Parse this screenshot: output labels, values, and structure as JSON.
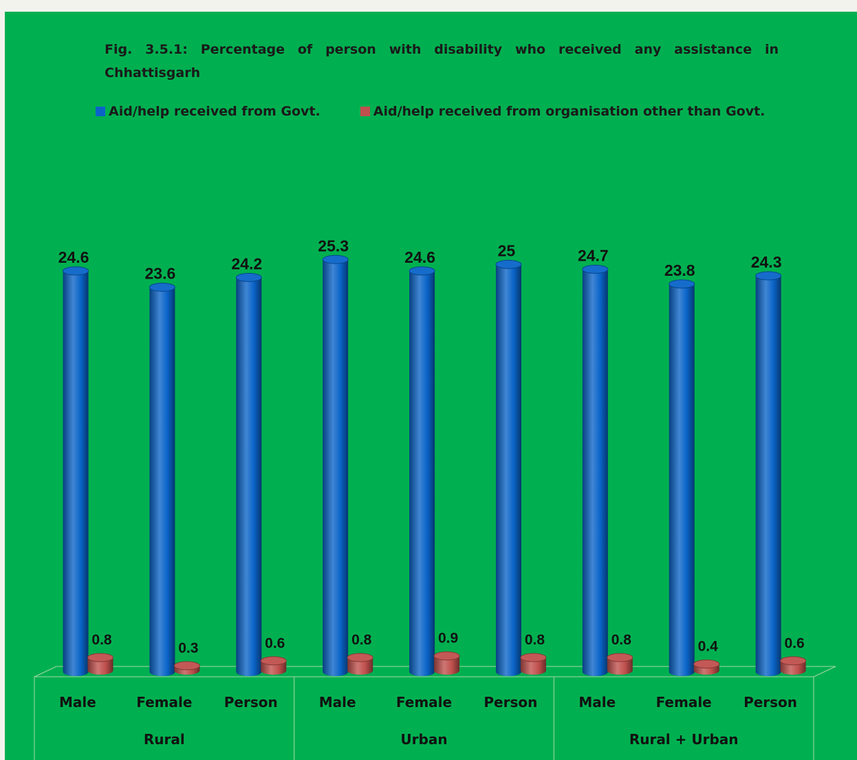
{
  "chart_data": {
    "type": "bar",
    "title": "Fig. 3.5.1: Percentage of person with disability who received any assistance in Chhattisgarh",
    "categories": [
      "Male",
      "Female",
      "Person",
      "Male",
      "Female",
      "Person",
      "Male",
      "Female",
      "Person"
    ],
    "groups": [
      {
        "label": "Rural",
        "size": 3
      },
      {
        "label": "Urban",
        "size": 3
      },
      {
        "label": "Rural + Urban",
        "size": 3
      }
    ],
    "series": [
      {
        "name": "Aid/help received from Govt.",
        "color": "#0a64c8",
        "values": [
          24.6,
          23.6,
          24.2,
          25.3,
          24.6,
          25,
          24.7,
          23.8,
          24.3
        ]
      },
      {
        "name": "Aid/help received from organisation other than Govt.",
        "color": "#c0504d",
        "values": [
          0.8,
          0.3,
          0.6,
          0.8,
          0.9,
          0.8,
          0.8,
          0.4,
          0.6
        ]
      }
    ],
    "xlabel": "",
    "ylabel": "",
    "ylim": [
      0,
      27
    ],
    "grid": false,
    "legend_position": "top",
    "style": "3d-cylinder",
    "background": "#00b050"
  }
}
